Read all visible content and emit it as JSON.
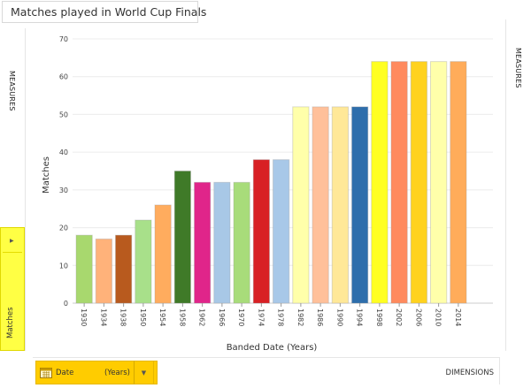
{
  "header": {
    "title": "Matches played in World Cup Finals"
  },
  "left_panel": {
    "measures_label": "MEASURES",
    "measure_item": "Matches"
  },
  "right_panel": {
    "measures_label": "MEASURES"
  },
  "dimension_bar": {
    "field_label": "Date",
    "field_unit": "(Years)",
    "dimensions_label": "DIMENSIONS"
  },
  "icons": {
    "title": "report-icon",
    "calendar": "calendar-icon",
    "dropdown": "chevron-down-icon",
    "expand": "triangle-right-icon"
  },
  "chart_data": {
    "type": "bar",
    "xlabel": "Banded Date (Years)",
    "ylabel": "Matches",
    "ylim": [
      0,
      70
    ],
    "yticks": [
      0,
      10,
      20,
      30,
      40,
      50,
      60,
      70
    ],
    "grid": true,
    "categories": [
      "1930",
      "1934",
      "1938",
      "1950",
      "1954",
      "1958",
      "1962",
      "1966",
      "1970",
      "1974",
      "1978",
      "1982",
      "1986",
      "1990",
      "1994",
      "1998",
      "2002",
      "2006",
      "2010",
      "2014"
    ],
    "values": [
      18,
      17,
      18,
      22,
      26,
      35,
      32,
      32,
      32,
      38,
      38,
      52,
      52,
      52,
      52,
      64,
      64,
      64,
      64,
      64
    ],
    "colors": [
      "#a8d86e",
      "#ffb27a",
      "#b85a1e",
      "#a8e08a",
      "#ffac5e",
      "#3f7a28",
      "#e0258a",
      "#a8c8e6",
      "#a8dc7a",
      "#d82024",
      "#a8c8e8",
      "#ffffaa",
      "#ffc09a",
      "#ffe898",
      "#2e6eac",
      "#ffff22",
      "#ff8a5e",
      "#ffd21e",
      "#ffffaa",
      "#ffac5a"
    ]
  }
}
